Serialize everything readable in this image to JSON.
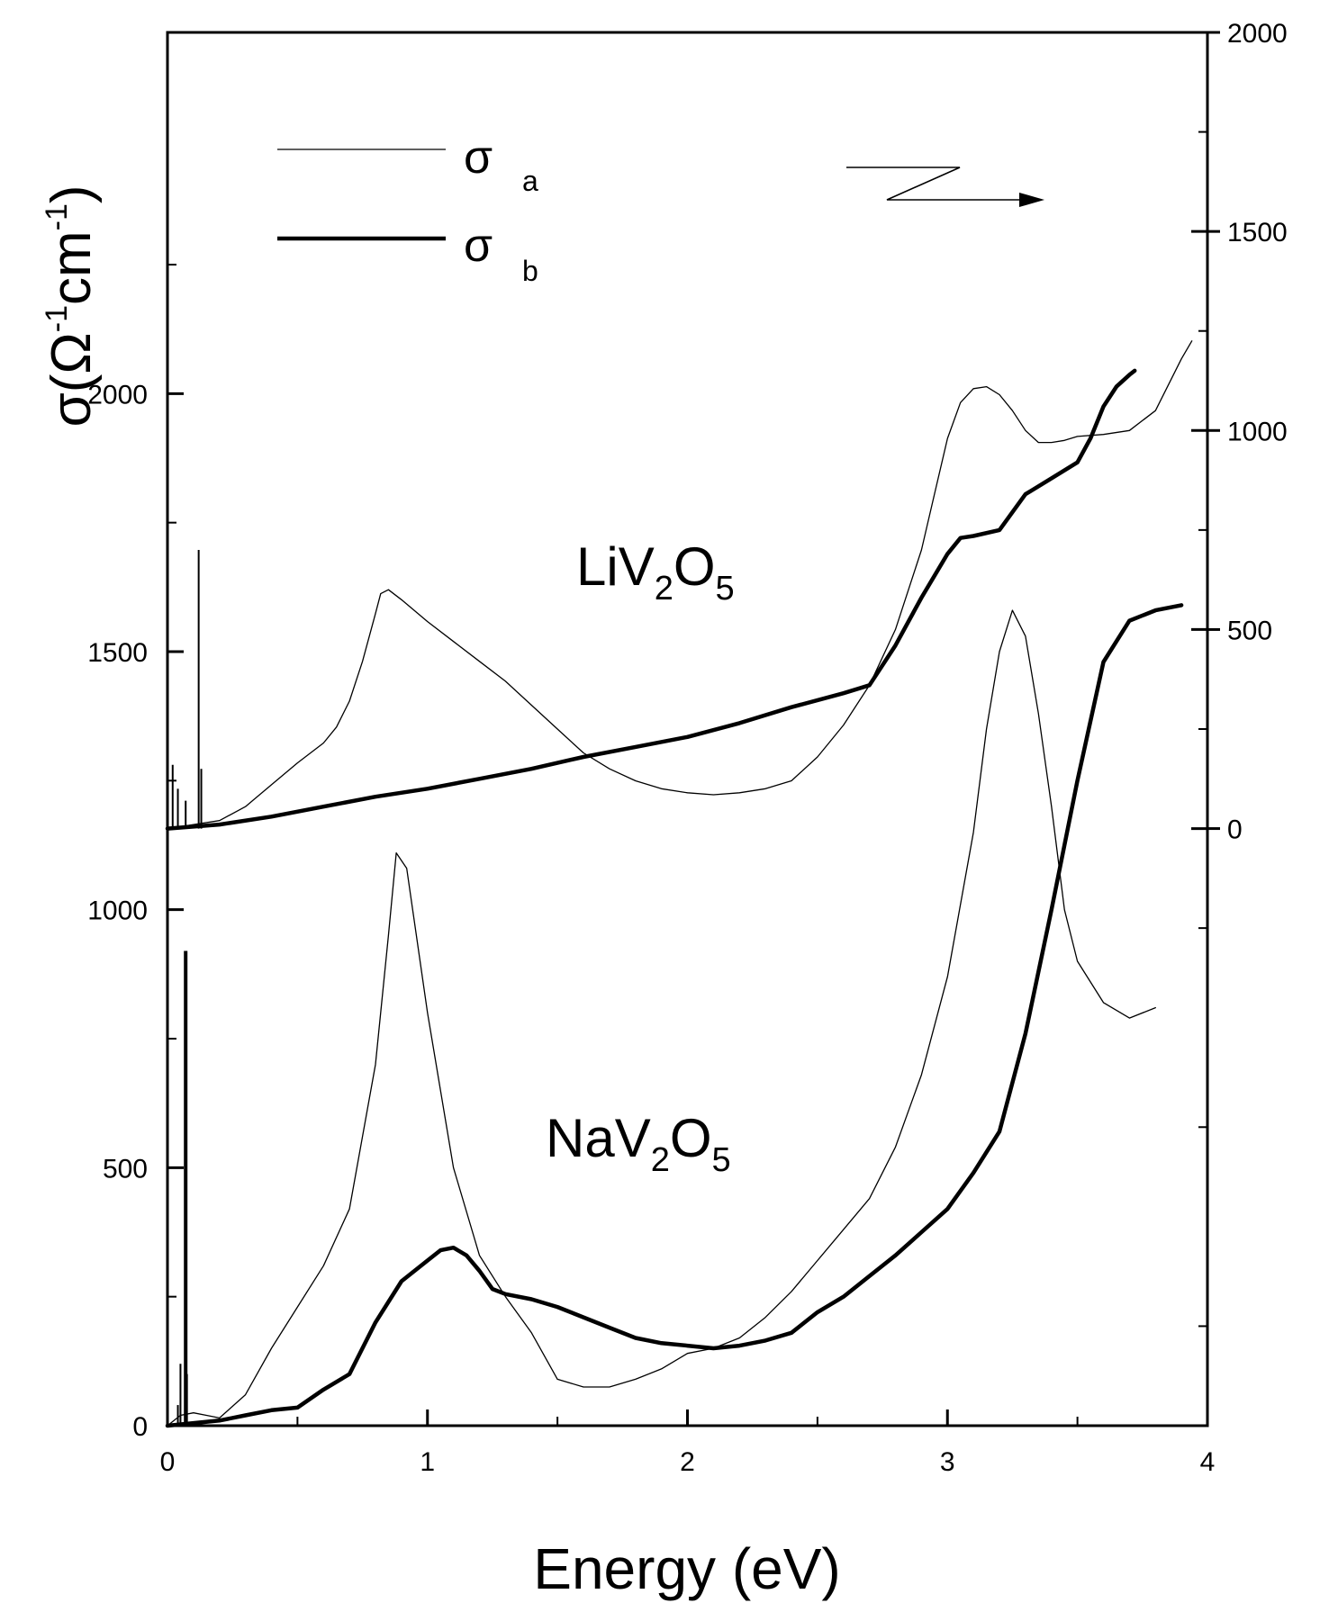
{
  "chart_data": {
    "type": "line",
    "xlabel": "Energy (eV)",
    "ylabel_left": {
      "main": "σ(Ω",
      "sup1": "-1",
      "mid": "cm",
      "sup2": "-1",
      "end": ")"
    },
    "xlim": [
      0,
      4
    ],
    "ylim_left": [
      0,
      2700
    ],
    "ylim_right": [
      -1500,
      2000
    ],
    "right_axis_offset": 1500,
    "x_ticks": [
      "0",
      "1",
      "2",
      "3",
      "4"
    ],
    "left_ticks": [
      "0",
      "500",
      "1000",
      "1500",
      "2000"
    ],
    "right_ticks": [
      "0",
      "500",
      "1000",
      "1500",
      "2000"
    ],
    "legend": [
      {
        "symbol": "σ",
        "subscript": "a",
        "style": "thin"
      },
      {
        "symbol": "σ",
        "subscript": "b",
        "style": "thick"
      }
    ],
    "legend_position": "top-left",
    "annotations": [
      {
        "base": "LiV",
        "sub1": "2",
        "mid": "O",
        "sub2": "5"
      },
      {
        "base": "NaV",
        "sub1": "2",
        "mid": "O",
        "sub2": "5"
      }
    ],
    "series": [
      {
        "name": "σ a",
        "compound": "LiV2O5",
        "axis": "right",
        "width": "thin",
        "x": [
          0.0,
          0.1,
          0.2,
          0.3,
          0.4,
          0.5,
          0.6,
          0.65,
          0.7,
          0.75,
          0.8,
          0.82,
          0.85,
          0.9,
          1.0,
          1.1,
          1.2,
          1.3,
          1.4,
          1.5,
          1.6,
          1.7,
          1.8,
          1.9,
          2.0,
          2.1,
          2.2,
          2.3,
          2.4,
          2.5,
          2.6,
          2.7,
          2.8,
          2.9,
          2.95,
          3.0,
          3.05,
          3.1,
          3.15,
          3.2,
          3.25,
          3.3,
          3.35,
          3.4,
          3.45,
          3.5,
          3.6,
          3.7,
          3.8,
          3.9,
          3.94
        ],
        "y": [
          0,
          10,
          20,
          55,
          110,
          165,
          215,
          255,
          320,
          420,
          540,
          590,
          600,
          575,
          520,
          470,
          420,
          370,
          310,
          250,
          190,
          150,
          120,
          100,
          90,
          85,
          90,
          100,
          120,
          180,
          260,
          360,
          500,
          700,
          840,
          980,
          1070,
          1105,
          1110,
          1090,
          1050,
          1000,
          970,
          970,
          975,
          985,
          990,
          1000,
          1050,
          1180,
          1225
        ]
      },
      {
        "name": "σ b",
        "compound": "LiV2O5",
        "axis": "right",
        "width": "thick",
        "x": [
          0.0,
          0.2,
          0.4,
          0.6,
          0.8,
          1.0,
          1.2,
          1.4,
          1.6,
          1.8,
          2.0,
          2.2,
          2.4,
          2.6,
          2.7,
          2.8,
          2.9,
          3.0,
          3.05,
          3.1,
          3.2,
          3.3,
          3.4,
          3.5,
          3.55,
          3.6,
          3.65,
          3.7,
          3.72
        ],
        "y": [
          0,
          10,
          30,
          55,
          80,
          100,
          125,
          150,
          180,
          205,
          230,
          265,
          305,
          340,
          360,
          460,
          580,
          690,
          730,
          735,
          750,
          840,
          880,
          920,
          980,
          1060,
          1110,
          1140,
          1150
        ]
      },
      {
        "name": "σ a",
        "compound": "NaV2O5",
        "axis": "left",
        "width": "thin",
        "x": [
          0.0,
          0.05,
          0.1,
          0.15,
          0.2,
          0.3,
          0.4,
          0.5,
          0.6,
          0.7,
          0.8,
          0.85,
          0.88,
          0.92,
          1.0,
          1.1,
          1.2,
          1.3,
          1.4,
          1.5,
          1.6,
          1.7,
          1.8,
          1.9,
          2.0,
          2.1,
          2.2,
          2.3,
          2.4,
          2.5,
          2.6,
          2.7,
          2.8,
          2.9,
          3.0,
          3.1,
          3.15,
          3.2,
          3.25,
          3.3,
          3.35,
          3.4,
          3.45,
          3.5,
          3.6,
          3.7,
          3.8
        ],
        "y": [
          0,
          20,
          25,
          20,
          15,
          60,
          150,
          230,
          310,
          420,
          700,
          950,
          1110,
          1080,
          800,
          500,
          330,
          250,
          180,
          90,
          75,
          75,
          90,
          110,
          140,
          150,
          170,
          210,
          260,
          320,
          380,
          440,
          540,
          680,
          870,
          1150,
          1350,
          1500,
          1580,
          1530,
          1380,
          1200,
          1000,
          900,
          820,
          790,
          810
        ]
      },
      {
        "name": "σ b",
        "compound": "NaV2O5",
        "axis": "left",
        "width": "thick",
        "x": [
          0.0,
          0.1,
          0.2,
          0.3,
          0.4,
          0.5,
          0.6,
          0.7,
          0.8,
          0.9,
          1.0,
          1.05,
          1.1,
          1.15,
          1.2,
          1.25,
          1.3,
          1.4,
          1.5,
          1.6,
          1.7,
          1.8,
          1.9,
          2.0,
          2.1,
          2.2,
          2.3,
          2.4,
          2.5,
          2.6,
          2.7,
          2.8,
          2.9,
          3.0,
          3.1,
          3.2,
          3.3,
          3.4,
          3.5,
          3.6,
          3.7,
          3.8,
          3.9
        ],
        "y": [
          0,
          5,
          10,
          20,
          30,
          35,
          70,
          100,
          200,
          280,
          320,
          340,
          345,
          330,
          300,
          265,
          255,
          245,
          230,
          210,
          190,
          170,
          160,
          155,
          150,
          155,
          165,
          180,
          220,
          250,
          290,
          330,
          375,
          420,
          490,
          570,
          760,
          1000,
          1250,
          1480,
          1560,
          1580,
          1590
        ]
      }
    ],
    "spikes": [
      {
        "compound": "LiV2O5",
        "axis": "right",
        "x": [
          0.02,
          0.04,
          0.07,
          0.12,
          0.13
        ],
        "y": [
          160,
          100,
          70,
          700,
          150
        ]
      },
      {
        "compound": "NaV2O5",
        "axis": "left",
        "x": [
          0.04,
          0.05,
          0.07,
          0.075
        ],
        "y": [
          40,
          120,
          920,
          100
        ]
      }
    ]
  }
}
